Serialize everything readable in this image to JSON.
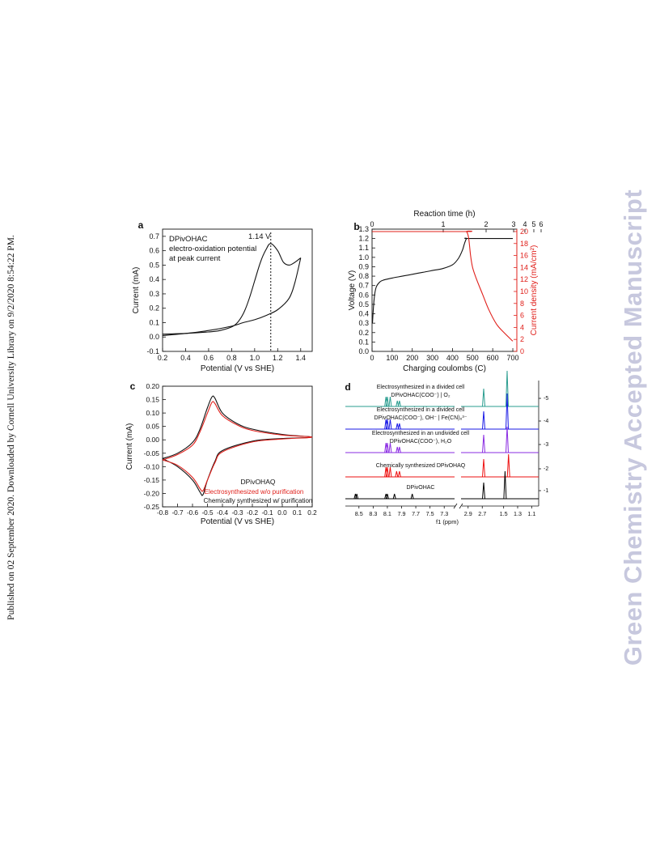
{
  "sidebar_left": "Published on 02 September 2020. Downloaded by Cornell University Library on 9/2/2020 8:54:22 PM.",
  "sidebar_right": "Green Chemistry Accepted Manuscript",
  "panels": {
    "a": {
      "letter": "a",
      "annotation_lines": [
        "DPivOHAC",
        "electro-oxidation potential",
        "at peak current"
      ],
      "peak_label": "1.14 V",
      "xlabel": "Potential (V vs SHE)",
      "ylabel": "Current (mA)",
      "xticks": [
        "0.2",
        "0.4",
        "0.6",
        "0.8",
        "1.0",
        "1.2",
        "1.4"
      ],
      "yticks": [
        "-0.1",
        "0.0",
        "0.1",
        "0.2",
        "0.3",
        "0.4",
        "0.5",
        "0.6",
        "0.7"
      ]
    },
    "b": {
      "letter": "b",
      "top_label": "Reaction time (h)",
      "top_ticks": [
        "0",
        "1",
        "2",
        "3",
        "4",
        "5",
        "6"
      ],
      "xlabel": "Charging coulombs (C)",
      "ylabel_left": "Voltage (V)",
      "ylabel_right": "Current density (mA/cm²)",
      "xticks": [
        "0",
        "100",
        "200",
        "300",
        "400",
        "500",
        "600",
        "700"
      ],
      "yticks_left": [
        "0.0",
        "0.1",
        "0.2",
        "0.3",
        "0.4",
        "0.5",
        "0.6",
        "0.7",
        "0.8",
        "0.9",
        "1.0",
        "1.1",
        "1.2",
        "1.3"
      ],
      "yticks_right": [
        "0",
        "2",
        "4",
        "6",
        "8",
        "10",
        "12",
        "14",
        "16",
        "18",
        "20"
      ],
      "right_color": "#e0201b"
    },
    "c": {
      "letter": "c",
      "label_compound": "DPivOHAQ",
      "label_red": "Electrosynthesized w/o purification",
      "label_black": "Chemically synthesized w/ purification",
      "xlabel": "Potential (V vs SHE)",
      "ylabel": "Current (mA)",
      "xticks": [
        "-0.8",
        "-0.7",
        "-0.6",
        "-0.5",
        "-0.4",
        "-0.3",
        "-0.2",
        "-0.1",
        "0.0",
        "0.1",
        "0.2"
      ],
      "yticks": [
        "-0.25",
        "-0.20",
        "-0.15",
        "-0.10",
        "-0.05",
        "0.00",
        "0.05",
        "0.10",
        "0.15",
        "0.20"
      ]
    },
    "d": {
      "letter": "d",
      "xlabel": "f1 (ppm)",
      "xticks": [
        "8.5",
        "8.3",
        "8.1",
        "7.9",
        "7.7",
        "7.5",
        "7.3",
        "2.9",
        "2.7",
        "1.5",
        "1.3",
        "1.1"
      ],
      "trace_ids": [
        "-5",
        "-4",
        "-3",
        "-2",
        "-1"
      ],
      "trace_labels": [
        [
          "Electrosynthesized in a divided cell",
          "DPivOHAC(COO⁻) | O₂"
        ],
        [
          "Electrosynthesized in a divided cell",
          "DPivOHAC(COO⁻), OH⁻ | Fe(CN)₆³⁻"
        ],
        [
          "Electrosynthesized in an undivided cell",
          "DPivOHAC(COO⁻), H₂O"
        ],
        [
          "Chemically synthesized DPivOHAQ"
        ],
        [
          "DPivOHAC"
        ]
      ],
      "trace_colors": [
        "#2a9d8f",
        "#1a1ae6",
        "#8a2be2",
        "#ee1111",
        "#000000"
      ]
    }
  },
  "chart_data": [
    {
      "type": "line",
      "title": "",
      "xlabel": "Potential (V vs SHE)",
      "ylabel": "Current (mA)",
      "xlim": [
        0.2,
        1.5
      ],
      "ylim": [
        -0.1,
        0.75
      ],
      "annotation": "1.14 V",
      "series": [
        {
          "x": [
            0.2,
            0.4,
            0.6,
            0.7,
            0.8,
            0.85,
            0.9,
            0.95,
            1.0,
            1.05,
            1.1,
            1.14,
            1.2,
            1.25,
            1.3,
            1.35,
            1.4
          ],
          "y": [
            0.02,
            0.025,
            0.035,
            0.045,
            0.07,
            0.1,
            0.16,
            0.26,
            0.39,
            0.52,
            0.61,
            0.65,
            0.6,
            0.52,
            0.5,
            0.52,
            0.55
          ]
        },
        {
          "x": [
            1.4,
            1.35,
            1.3,
            1.2,
            1.1,
            1.0,
            0.9,
            0.8,
            0.6,
            0.4,
            0.2
          ],
          "y": [
            0.55,
            0.38,
            0.27,
            0.19,
            0.15,
            0.12,
            0.1,
            0.075,
            0.045,
            0.025,
            0.01
          ]
        }
      ]
    },
    {
      "type": "line",
      "title": "",
      "xlabel": "Charging coulombs (C)",
      "ylabel": "Voltage (V)",
      "y2label": "Current density (mA/cm²)",
      "xlim": [
        0,
        720
      ],
      "ylim": [
        0,
        1.3
      ],
      "y2lim": [
        0,
        20
      ],
      "series": [
        {
          "name": "",
          "axis": "left",
          "x": [
            2,
            10,
            20,
            40,
            60,
            100,
            150,
            200,
            250,
            300,
            350,
            400,
            430,
            450,
            460,
            470,
            480,
            700
          ],
          "y": [
            0.3,
            0.55,
            0.68,
            0.74,
            0.76,
            0.78,
            0.8,
            0.82,
            0.84,
            0.86,
            0.88,
            0.92,
            0.99,
            1.08,
            1.15,
            1.2,
            1.2,
            1.2
          ]
        },
        {
          "name": "",
          "axis": "right",
          "x": [
            0,
            460,
            470,
            480,
            490,
            500,
            520,
            550,
            580,
            620,
            660,
            700
          ],
          "y": [
            20,
            20,
            20,
            19,
            16,
            14,
            12,
            9.5,
            7,
            4.5,
            3,
            1.7
          ]
        }
      ]
    },
    {
      "type": "line",
      "title": "",
      "xlabel": "Potential (V vs SHE)",
      "ylabel": "Current (mA)",
      "xlim": [
        -0.8,
        0.2
      ],
      "ylim": [
        -0.25,
        0.2
      ],
      "series": [
        {
          "name": "Chemically synthesized w/ purification",
          "x": [
            -0.8,
            -0.7,
            -0.6,
            -0.55,
            -0.5,
            -0.47,
            -0.45,
            -0.4,
            -0.3,
            -0.2,
            0.0,
            0.2,
            0.0,
            -0.2,
            -0.4,
            -0.45,
            -0.5,
            -0.53,
            -0.55,
            -0.6,
            -0.7,
            -0.8
          ],
          "y": [
            -0.07,
            -0.05,
            -0.01,
            0.04,
            0.12,
            0.16,
            0.155,
            0.1,
            0.06,
            0.04,
            0.02,
            0.01,
            0.005,
            -0.005,
            -0.04,
            -0.08,
            -0.15,
            -0.205,
            -0.195,
            -0.15,
            -0.1,
            -0.07
          ]
        },
        {
          "name": "Electrosynthesized w/o purification",
          "x": [
            -0.8,
            -0.7,
            -0.6,
            -0.55,
            -0.5,
            -0.47,
            -0.45,
            -0.4,
            -0.3,
            -0.2,
            0.0,
            0.2,
            0.0,
            -0.2,
            -0.4,
            -0.45,
            -0.5,
            -0.53,
            -0.55,
            -0.6,
            -0.7,
            -0.8
          ],
          "y": [
            -0.075,
            -0.055,
            -0.02,
            0.03,
            0.1,
            0.14,
            0.135,
            0.09,
            0.055,
            0.035,
            0.018,
            0.01,
            0.003,
            -0.008,
            -0.045,
            -0.085,
            -0.15,
            -0.19,
            -0.182,
            -0.14,
            -0.095,
            -0.075
          ]
        }
      ]
    },
    {
      "type": "line",
      "title": "",
      "xlabel": "f1 (ppm)",
      "series": [
        {
          "name": "DPivOHAC",
          "peaks_ppm": [
            8.55,
            8.53,
            8.12,
            8.1,
            8.0,
            7.75,
            2.68,
            1.48
          ]
        },
        {
          "name": "Chemically synthesized DPivOHAQ",
          "peaks_ppm": [
            8.12,
            8.1,
            8.06,
            7.97,
            7.93,
            2.68,
            1.43
          ]
        },
        {
          "name": "Electrosynthesized in an undivided cell",
          "peaks_ppm": [
            8.12,
            8.1,
            8.06,
            7.96,
            7.93,
            2.68,
            1.45
          ]
        },
        {
          "name": "Electrosynthesized in a divided cell (Fe(CN)6)",
          "peaks_ppm": [
            8.12,
            8.1,
            8.06,
            7.96,
            7.93,
            2.68,
            1.45
          ]
        },
        {
          "name": "Electrosynthesized in a divided cell (O2)",
          "peaks_ppm": [
            8.12,
            8.1,
            8.06,
            7.96,
            7.93,
            2.68,
            1.45
          ]
        }
      ]
    }
  ]
}
